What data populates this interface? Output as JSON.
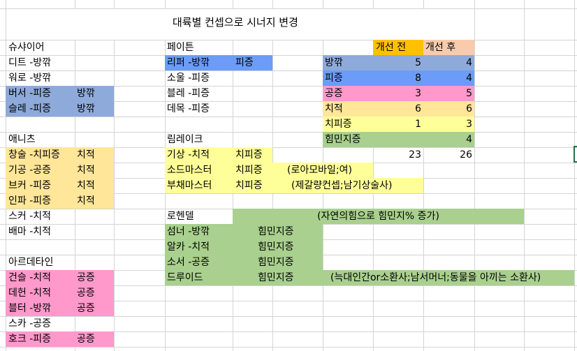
{
  "title": "대륙별 컨셉으로 시너지 변경",
  "colors": {
    "방깎": "#8eaadb",
    "피증": "#6b9cf7",
    "공증": "#ff99cc",
    "치적": "#ffe699",
    "치피증": "#ffff99",
    "힘민지증": "#a9d08e",
    "before": "#ffc000",
    "after": "#f8cbad"
  },
  "shushire": {
    "header": "슈샤이어",
    "rows": [
      [
        "디트 -방깎",
        ""
      ],
      [
        "워로 -방깎",
        ""
      ],
      [
        "버서 -피증",
        "방깎"
      ],
      [
        "슬레 -피증",
        "방깎"
      ]
    ]
  },
  "anihc": {
    "header": "애니츠",
    "rows": [
      [
        "창술 -치피증",
        "치적"
      ],
      [
        "기공 -공증",
        "치적"
      ],
      [
        "브커 -피증",
        "치적"
      ],
      [
        "인파 -피증",
        "치적"
      ],
      [
        "스커 -치적",
        ""
      ],
      [
        "배마 -치적",
        ""
      ]
    ]
  },
  "arde": {
    "header": "아르데타인",
    "rows": [
      [
        "건슬 -치적",
        "공증"
      ],
      [
        "데헌 -치적",
        "공증"
      ],
      [
        "블터 -방깎",
        "공증"
      ],
      [
        "스카 -공증",
        ""
      ],
      [
        "호크 -피증",
        "공증"
      ]
    ]
  },
  "peyton": {
    "header": "페이튼",
    "rows": [
      [
        "리퍼 -방깎",
        "피증"
      ],
      [
        "소울 -피증",
        ""
      ],
      [
        "블레 -피증",
        ""
      ],
      [
        "데목 -피증",
        ""
      ]
    ]
  },
  "rimlake": {
    "header": "림레이크",
    "rows": [
      [
        "기상 -치적",
        "치피증",
        ""
      ],
      [
        "소드마스터",
        "치피증",
        "(로아모바일;여)"
      ],
      [
        "부채마스터",
        "치피증",
        "(제갈량컨셉;남기상술사)"
      ]
    ]
  },
  "rohendel": {
    "header": "로헨델",
    "note": "(자연의힘으로 힘민지% 증가)",
    "rows": [
      [
        "섬너 -방깎",
        "힘민지증",
        ""
      ],
      [
        "알카 -치적",
        "힘민지증",
        ""
      ],
      [
        "소서 -공증",
        "힘민지증",
        ""
      ],
      [
        "드루이드",
        "힘민지증",
        "(늑대인간or소환사;남서머너;동물을 아끼는 소환사)"
      ]
    ]
  },
  "summary": {
    "before_label": "개선 전",
    "after_label": "개선 후",
    "rows": [
      {
        "label": "방깎",
        "before": "5",
        "after": "4"
      },
      {
        "label": "피증",
        "before": "8",
        "after": "4"
      },
      {
        "label": "공증",
        "before": "3",
        "after": "5"
      },
      {
        "label": "치적",
        "before": "6",
        "after": "6"
      },
      {
        "label": "치피증",
        "before": "1",
        "after": "3"
      },
      {
        "label": "힘민지증",
        "before": "",
        "after": "4"
      }
    ],
    "total_before": "23",
    "total_after": "26"
  }
}
